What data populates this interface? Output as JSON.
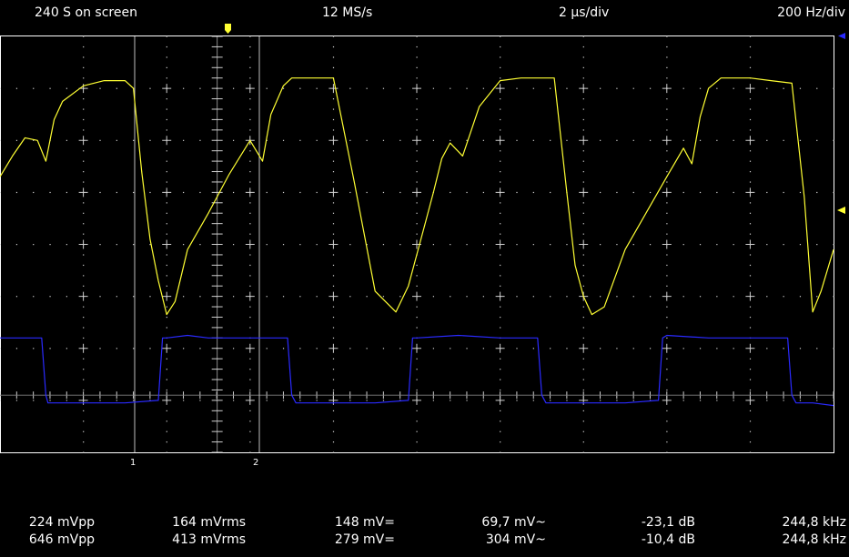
{
  "header": {
    "samples_on_screen": "240 S on screen",
    "sample_rate": "12 MS/s",
    "timebase": "2 µs/div",
    "freq_div": "200 Hz/div"
  },
  "colors": {
    "channel_1": "#ffff33",
    "channel_2": "#2a2aff",
    "grid": "#ffffff",
    "background": "#000000"
  },
  "icons": {
    "trigger_position_marker": "yellow-down-arrow-marker",
    "channel_1_level_marker": "yellow-left-arrow-marker",
    "channel_2_level_marker": "blue-left-arrow-marker"
  },
  "cursors": {
    "cursor_1_label": "1",
    "cursor_2_label": "2"
  },
  "chart_data": {
    "type": "line",
    "x_unit": "µs",
    "y_unit": "div",
    "xlim": [
      0,
      20
    ],
    "ylim": [
      -4,
      4
    ],
    "grid": true,
    "series": [
      {
        "channel": 1,
        "color": "#ffff33",
        "x": [
          0,
          0.3,
          0.6,
          0.9,
          1.1,
          1.3,
          1.5,
          2.0,
          2.5,
          3.0,
          3.2,
          3.4,
          3.6,
          3.8,
          4.0,
          4.2,
          4.5,
          5.0,
          5.5,
          6.0,
          6.3,
          6.5,
          6.8,
          7.0,
          7.3,
          7.6,
          8.0,
          8.5,
          9.0,
          9.5,
          9.8,
          10.0,
          10.2,
          10.4,
          10.6,
          10.8,
          11.1,
          11.5,
          12.0,
          12.5,
          13.0,
          13.3,
          13.6,
          13.8,
          14.0,
          14.2,
          14.5,
          15.0,
          15.5,
          16.0,
          16.4,
          16.6,
          16.8,
          17.0,
          17.3,
          17.6,
          18.0,
          18.5,
          19.0,
          19.3,
          19.5,
          19.7,
          20.0
        ],
        "y": [
          1.3,
          1.7,
          2.05,
          2.0,
          1.6,
          2.4,
          2.75,
          3.05,
          3.15,
          3.15,
          3.0,
          1.4,
          0.1,
          -0.7,
          -1.35,
          -1.1,
          -0.1,
          0.6,
          1.35,
          2.0,
          1.6,
          2.5,
          3.05,
          3.2,
          3.2,
          3.2,
          3.2,
          1.2,
          -0.9,
          -1.3,
          -0.8,
          -0.2,
          0.4,
          1.0,
          1.65,
          1.95,
          1.7,
          2.65,
          3.15,
          3.2,
          3.2,
          3.2,
          1.0,
          -0.4,
          -1.0,
          -1.35,
          -1.2,
          -0.1,
          0.6,
          1.3,
          1.85,
          1.55,
          2.45,
          3.0,
          3.2,
          3.2,
          3.2,
          3.15,
          3.1,
          0.9,
          -1.3,
          -0.9,
          -0.1
        ]
      },
      {
        "channel": 2,
        "color": "#2a2aff",
        "x": [
          0,
          1.0,
          1.1,
          1.15,
          2.0,
          3.0,
          3.8,
          3.9,
          4.0,
          4.5,
          5.0,
          6.0,
          6.9,
          7.0,
          7.1,
          8.0,
          9.0,
          9.8,
          9.9,
          10.0,
          11.0,
          12.0,
          12.9,
          13.0,
          13.1,
          14.0,
          15.0,
          15.8,
          15.9,
          16.0,
          17.0,
          18.0,
          18.9,
          19.0,
          19.1,
          19.5,
          20.0
        ],
        "y": [
          -1.8,
          -1.8,
          -2.9,
          -3.05,
          -3.05,
          -3.05,
          -3.0,
          -1.8,
          -1.8,
          -1.75,
          -1.8,
          -1.8,
          -1.8,
          -2.9,
          -3.05,
          -3.05,
          -3.05,
          -3.0,
          -1.8,
          -1.8,
          -1.75,
          -1.8,
          -1.8,
          -2.9,
          -3.05,
          -3.05,
          -3.05,
          -3.0,
          -1.8,
          -1.75,
          -1.8,
          -1.8,
          -1.8,
          -2.9,
          -3.05,
          -3.05,
          -3.1
        ]
      }
    ]
  },
  "measurements": [
    {
      "channel": 1,
      "vpp": "224 mVpp",
      "vrms": "164 mVrms",
      "vdc": "148 mV=",
      "vac": "69,7 mV~",
      "db": "-23,1 dB",
      "freq": "244,8 kHz"
    },
    {
      "channel": 2,
      "vpp": "646 mVpp",
      "vrms": "413 mVrms",
      "vdc": "279 mV=",
      "vac": "304 mV~",
      "db": "-10,4 dB",
      "freq": "244,8 kHz"
    }
  ]
}
